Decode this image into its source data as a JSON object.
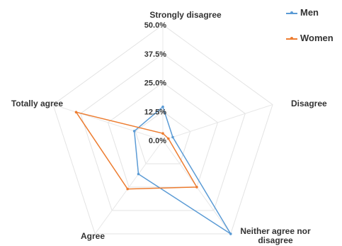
{
  "chart_data": {
    "type": "radar",
    "axes": [
      "Strongly disagree",
      "Disagree",
      "Neither agree nor disagree",
      "Agree",
      "Totally agree"
    ],
    "scale": {
      "min": 0,
      "max": 50,
      "ticks": [
        0,
        12.5,
        25,
        37.5,
        50
      ]
    },
    "tick_labels": [
      "0.0%",
      "12.5%",
      "25.0%",
      "37.5%",
      "50.0%"
    ],
    "series": [
      {
        "name": "Men",
        "color": "#5b9bd5",
        "values": [
          14.5,
          4.5,
          50.0,
          18.0,
          13.0
        ]
      },
      {
        "name": "Women",
        "color": "#ed7d31",
        "values": [
          3.0,
          2.5,
          25.0,
          26.0,
          39.5
        ]
      }
    ],
    "legend_position": "top-right",
    "grid": true
  }
}
